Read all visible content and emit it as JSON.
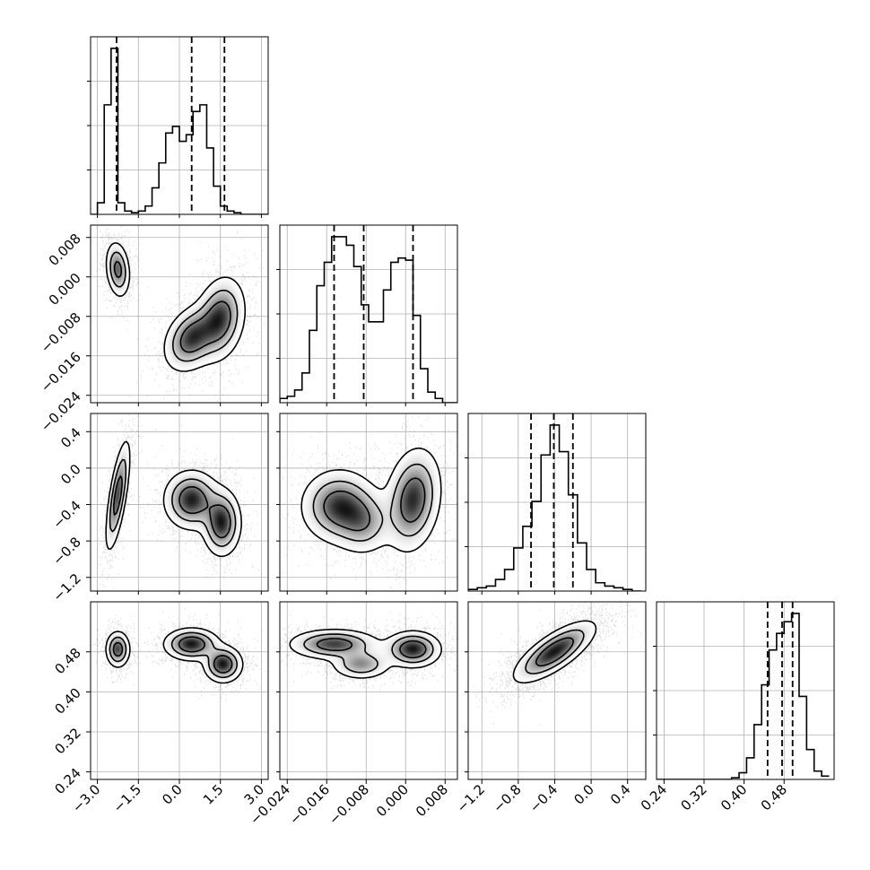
{
  "chart_data": {
    "type": "corner",
    "parameters": [
      {
        "id": "p1",
        "range": [
          -3.25,
          3.25
        ],
        "ticks": [
          -3.0,
          -1.5,
          0.0,
          1.5,
          3.0
        ],
        "tick_labels": [
          "−3.0",
          "−1.5",
          "0.0",
          "1.5",
          "3.0"
        ]
      },
      {
        "id": "p2",
        "range": [
          -0.0255,
          0.0105
        ],
        "ticks": [
          -0.024,
          -0.016,
          -0.008,
          0.0,
          0.008
        ],
        "tick_labels": [
          "−0.024",
          "−0.016",
          "−0.008",
          "0.000",
          "0.008"
        ]
      },
      {
        "id": "p3",
        "range": [
          -1.35,
          0.6
        ],
        "ticks": [
          -1.2,
          -0.8,
          -0.4,
          0.0,
          0.4
        ],
        "tick_labels": [
          "−1.2",
          "−0.8",
          "−0.4",
          "0.0",
          "0.4"
        ]
      },
      {
        "id": "p4",
        "range": [
          0.225,
          0.58
        ],
        "ticks": [
          0.24,
          0.32,
          0.4,
          0.48
        ],
        "tick_labels": [
          "0.24",
          "0.32",
          "0.40",
          "0.48"
        ]
      }
    ],
    "histograms": [
      {
        "param": 0,
        "bin_edges": [
          -3.25,
          -3.0,
          -2.75,
          -2.5,
          -2.25,
          -2.0,
          -1.75,
          -1.5,
          -1.25,
          -1.0,
          -0.75,
          -0.5,
          -0.25,
          0.0,
          0.25,
          0.5,
          0.75,
          1.0,
          1.25,
          1.5,
          1.75,
          2.0,
          2.25,
          2.5,
          2.75,
          3.0,
          3.25
        ],
        "counts": [
          0,
          0.07,
          0.66,
          1.0,
          0.07,
          0.02,
          0.01,
          0.02,
          0.05,
          0.16,
          0.31,
          0.49,
          0.53,
          0.44,
          0.48,
          0.62,
          0.66,
          0.4,
          0.17,
          0.05,
          0.02,
          0.01,
          0,
          0,
          0,
          0
        ],
        "quantiles": [
          -2.3,
          0.45,
          1.65
        ]
      },
      {
        "param": 1,
        "bin_edges": [
          -0.0255,
          -0.024,
          -0.0225,
          -0.021,
          -0.0195,
          -0.018,
          -0.0165,
          -0.015,
          -0.0135,
          -0.012,
          -0.0105,
          -0.009,
          -0.0075,
          -0.006,
          -0.0045,
          -0.003,
          -0.0015,
          0.0,
          0.0015,
          0.003,
          0.0045,
          0.006,
          0.0075,
          0.009,
          0.0105
        ],
        "counts": [
          0.02,
          0.03,
          0.06,
          0.14,
          0.34,
          0.55,
          0.66,
          0.78,
          0.78,
          0.74,
          0.64,
          0.46,
          0.38,
          0.38,
          0.53,
          0.66,
          0.68,
          0.67,
          0.41,
          0.16,
          0.05,
          0.02,
          0,
          0
        ],
        "quantiles": [
          -0.0145,
          -0.0085,
          0.0015
        ]
      },
      {
        "param": 2,
        "bin_edges": [
          -1.35,
          -1.25,
          -1.15,
          -1.05,
          -0.95,
          -0.85,
          -0.75,
          -0.65,
          -0.55,
          -0.45,
          -0.35,
          -0.25,
          -0.15,
          -0.05,
          0.05,
          0.15,
          0.25,
          0.35,
          0.45,
          0.55
        ],
        "counts": [
          0.01,
          0.02,
          0.03,
          0.07,
          0.13,
          0.26,
          0.39,
          0.54,
          0.82,
          1.0,
          0.84,
          0.58,
          0.29,
          0.13,
          0.05,
          0.03,
          0.02,
          0.01,
          0
        ],
        "quantiles": [
          -0.66,
          -0.41,
          -0.2
        ]
      },
      {
        "param": 3,
        "bin_edges": [
          0.225,
          0.24,
          0.255,
          0.27,
          0.285,
          0.3,
          0.315,
          0.33,
          0.345,
          0.36,
          0.375,
          0.39,
          0.405,
          0.42,
          0.435,
          0.45,
          0.465,
          0.48,
          0.495,
          0.51,
          0.525,
          0.54,
          0.555,
          0.57
        ],
        "counts": [
          0,
          0,
          0,
          0,
          0,
          0,
          0,
          0,
          0,
          0,
          0.01,
          0.04,
          0.13,
          0.33,
          0.57,
          0.78,
          0.88,
          0.95,
          1.0,
          0.5,
          0.18,
          0.05,
          0.02
        ],
        "quantiles": [
          0.447,
          0.476,
          0.497
        ]
      }
    ],
    "joint_panels": [
      {
        "row": 1,
        "col": 0,
        "modes": [
          {
            "x": -2.25,
            "y": 0.0015,
            "sx": 0.22,
            "sy": 0.0028,
            "rho": -0.2,
            "w": 0.3
          },
          {
            "x": 0.45,
            "y": -0.0125,
            "sx": 0.5,
            "sy": 0.0033,
            "rho": 0.3,
            "w": 0.35
          },
          {
            "x": 1.5,
            "y": -0.0085,
            "sx": 0.45,
            "sy": 0.0042,
            "rho": 0.2,
            "w": 0.35
          }
        ]
      },
      {
        "row": 2,
        "col": 0,
        "modes": [
          {
            "x": -2.25,
            "y": -0.3,
            "sx": 0.22,
            "sy": 0.3,
            "rho": 0.7,
            "w": 0.3
          },
          {
            "x": 0.45,
            "y": -0.35,
            "sx": 0.5,
            "sy": 0.16,
            "rho": 0.0,
            "w": 0.35
          },
          {
            "x": 1.55,
            "y": -0.6,
            "sx": 0.35,
            "sy": 0.18,
            "rho": 0.0,
            "w": 0.35
          }
        ]
      },
      {
        "row": 2,
        "col": 1,
        "modes": [
          {
            "x": -0.0135,
            "y": -0.42,
            "sx": 0.0038,
            "sy": 0.2,
            "rho": 0.0,
            "w": 0.38
          },
          {
            "x": -0.0085,
            "y": -0.6,
            "sx": 0.003,
            "sy": 0.18,
            "rho": 0.0,
            "w": 0.22
          },
          {
            "x": 0.0015,
            "y": -0.35,
            "sx": 0.0028,
            "sy": 0.28,
            "rho": 0.2,
            "w": 0.4
          }
        ]
      },
      {
        "row": 3,
        "col": 0,
        "modes": [
          {
            "x": -2.25,
            "y": 0.485,
            "sx": 0.22,
            "sy": 0.018,
            "rho": 0.0,
            "w": 0.3
          },
          {
            "x": 0.45,
            "y": 0.495,
            "sx": 0.5,
            "sy": 0.016,
            "rho": 0.0,
            "w": 0.35
          },
          {
            "x": 1.6,
            "y": 0.455,
            "sx": 0.35,
            "sy": 0.018,
            "rho": 0.0,
            "w": 0.35
          }
        ]
      },
      {
        "row": 3,
        "col": 1,
        "modes": [
          {
            "x": -0.0145,
            "y": 0.495,
            "sx": 0.0045,
            "sy": 0.015,
            "rho": 0.0,
            "w": 0.35
          },
          {
            "x": -0.009,
            "y": 0.455,
            "sx": 0.003,
            "sy": 0.015,
            "rho": 0.0,
            "w": 0.25
          },
          {
            "x": 0.0015,
            "y": 0.485,
            "sx": 0.0028,
            "sy": 0.018,
            "rho": 0.0,
            "w": 0.4
          }
        ]
      },
      {
        "row": 3,
        "col": 2,
        "modes": [
          {
            "x": -0.4,
            "y": 0.48,
            "sx": 0.22,
            "sy": 0.03,
            "rho": 0.75,
            "w": 1.0
          }
        ]
      }
    ],
    "contour_levels": [
      0.12,
      0.35,
      0.65
    ],
    "grid": true,
    "colors": {
      "line": "#000000",
      "grid": "#b0b0b0",
      "scatter": "#000000",
      "fill_light": "#ffffff",
      "fill_dark": "#000000"
    }
  }
}
